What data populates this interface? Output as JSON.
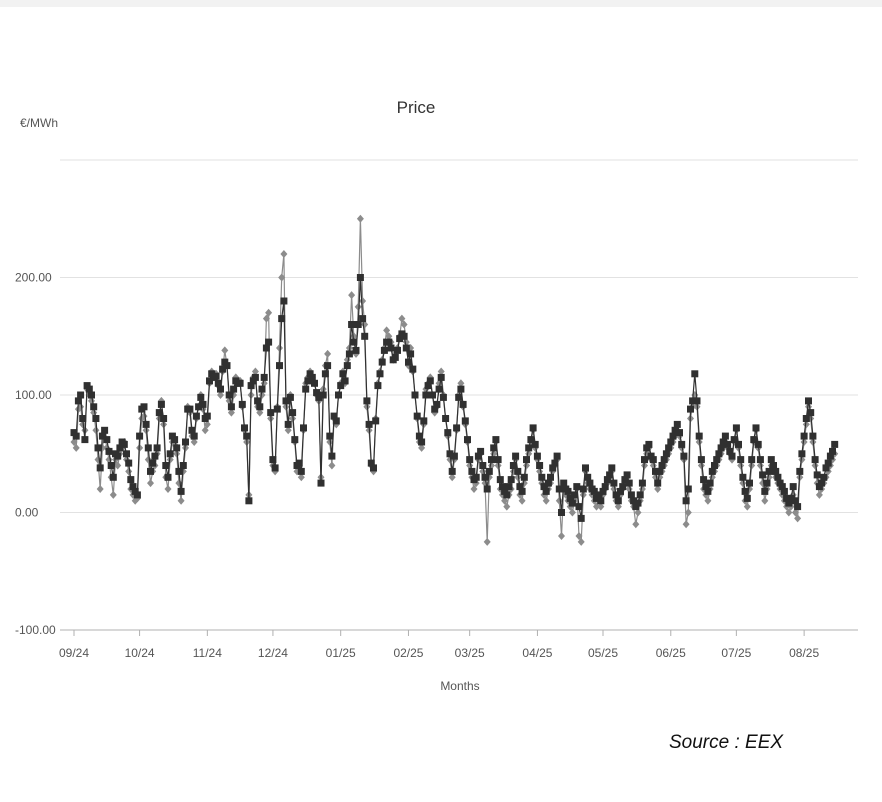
{
  "chart_data": {
    "type": "line",
    "title": "Price",
    "ylabel": "€/MWh",
    "xlabel": "Months",
    "ylim": [
      -100,
      300
    ],
    "yticks": [
      "-100.00",
      "0.00",
      "100.00",
      "200.00"
    ],
    "grid": true,
    "xtick_labels": [
      "09/24",
      "10/24",
      "11/24",
      "12/24",
      "01/25",
      "02/25",
      "03/25",
      "04/25",
      "05/25",
      "06/25",
      "07/25",
      "08/25"
    ],
    "date_start": "2024-09-01",
    "series": [
      {
        "name": "",
        "marker": "diamond",
        "color": "#8c8c8c",
        "values": [
          60,
          55,
          88,
          90,
          75,
          70,
          105,
          100,
          95,
          85,
          70,
          45,
          20,
          55,
          68,
          55,
          45,
          30,
          15,
          45,
          40,
          50,
          55,
          60,
          45,
          35,
          20,
          15,
          10,
          12,
          55,
          80,
          82,
          70,
          45,
          25,
          35,
          40,
          50,
          80,
          95,
          75,
          30,
          20,
          45,
          60,
          58,
          50,
          25,
          10,
          35,
          55,
          90,
          85,
          65,
          60,
          80,
          90,
          100,
          88,
          70,
          75,
          110,
          120,
          115,
          118,
          108,
          100,
          120,
          138,
          125,
          95,
          85,
          100,
          115,
          110,
          112,
          90,
          70,
          60,
          15,
          100,
          115,
          120,
          90,
          85,
          100,
          110,
          165,
          170,
          80,
          40,
          35,
          90,
          140,
          200,
          220,
          90,
          70,
          100,
          80,
          60,
          35,
          40,
          30,
          70,
          110,
          115,
          120,
          115,
          110,
          100,
          95,
          30,
          105,
          125,
          135,
          60,
          40,
          80,
          75,
          100,
          110,
          120,
          110,
          130,
          140,
          185,
          150,
          135,
          175,
          250,
          180,
          160,
          90,
          70,
          40,
          35,
          80,
          110,
          120,
          130,
          140,
          155,
          150,
          145,
          130,
          135,
          140,
          150,
          165,
          160,
          145,
          125,
          140,
          120,
          100,
          80,
          60,
          55,
          75,
          105,
          110,
          115,
          100,
          85,
          90,
          110,
          120,
          100,
          80,
          65,
          45,
          30,
          45,
          70,
          100,
          110,
          90,
          75,
          60,
          40,
          30,
          20,
          25,
          45,
          50,
          35,
          25,
          -25,
          30,
          40,
          50,
          60,
          40,
          20,
          15,
          10,
          5,
          15,
          20,
          35,
          45,
          30,
          15,
          10,
          25,
          40,
          50,
          60,
          70,
          55,
          45,
          35,
          25,
          15,
          10,
          20,
          25,
          35,
          40,
          45,
          10,
          -20,
          20,
          15,
          10,
          5,
          0,
          10,
          20,
          -20,
          -25,
          15,
          35,
          25,
          20,
          15,
          10,
          5,
          10,
          5,
          15,
          20,
          25,
          30,
          35,
          20,
          10,
          5,
          15,
          20,
          25,
          30,
          20,
          10,
          5,
          -10,
          0,
          10,
          20,
          40,
          50,
          55,
          45,
          40,
          30,
          20,
          30,
          35,
          40,
          45,
          50,
          55,
          60,
          65,
          70,
          65,
          55,
          45,
          -10,
          0,
          80,
          90,
          100,
          90,
          60,
          40,
          20,
          15,
          10,
          20,
          30,
          35,
          40,
          45,
          50,
          55,
          60,
          55,
          50,
          45,
          60,
          70,
          55,
          40,
          25,
          10,
          5,
          20,
          40,
          60,
          70,
          55,
          40,
          25,
          10,
          20,
          30,
          40,
          35,
          30,
          25,
          20,
          15,
          10,
          5,
          0,
          5,
          15,
          0,
          -5,
          30,
          45,
          60,
          75,
          90,
          80,
          60,
          40,
          25,
          15,
          20,
          25,
          30,
          35,
          40,
          45,
          50
        ]
      },
      {
        "name": "",
        "marker": "square",
        "color": "#303030",
        "values": [
          68,
          65,
          95,
          100,
          80,
          62,
          108,
          105,
          100,
          90,
          80,
          55,
          38,
          65,
          70,
          62,
          52,
          40,
          30,
          50,
          48,
          55,
          60,
          58,
          50,
          42,
          28,
          22,
          18,
          15,
          65,
          88,
          90,
          75,
          55,
          35,
          42,
          48,
          55,
          85,
          92,
          80,
          40,
          30,
          50,
          65,
          62,
          55,
          35,
          18,
          40,
          60,
          88,
          88,
          70,
          65,
          82,
          90,
          98,
          92,
          80,
          82,
          112,
          118,
          115,
          116,
          110,
          105,
          122,
          128,
          125,
          100,
          90,
          105,
          112,
          110,
          110,
          92,
          72,
          65,
          10,
          108,
          112,
          115,
          95,
          90,
          105,
          115,
          140,
          145,
          85,
          45,
          38,
          88,
          125,
          165,
          180,
          95,
          75,
          98,
          85,
          62,
          40,
          42,
          35,
          72,
          105,
          112,
          118,
          115,
          110,
          102,
          98,
          25,
          100,
          118,
          125,
          65,
          48,
          82,
          78,
          100,
          108,
          118,
          112,
          125,
          135,
          160,
          145,
          138,
          160,
          200,
          165,
          150,
          95,
          75,
          42,
          38,
          78,
          108,
          118,
          128,
          138,
          145,
          145,
          140,
          130,
          132,
          138,
          148,
          152,
          150,
          140,
          128,
          135,
          122,
          100,
          82,
          65,
          60,
          78,
          100,
          108,
          112,
          100,
          88,
          92,
          105,
          115,
          98,
          80,
          68,
          50,
          35,
          48,
          72,
          98,
          105,
          92,
          78,
          62,
          45,
          35,
          28,
          30,
          48,
          52,
          40,
          30,
          20,
          35,
          45,
          55,
          62,
          45,
          28,
          22,
          18,
          15,
          22,
          28,
          40,
          48,
          35,
          22,
          18,
          30,
          45,
          55,
          62,
          72,
          58,
          48,
          40,
          30,
          22,
          18,
          25,
          30,
          38,
          42,
          48,
          20,
          0,
          25,
          20,
          18,
          12,
          8,
          15,
          22,
          5,
          -5,
          20,
          38,
          30,
          25,
          20,
          18,
          12,
          15,
          10,
          18,
          22,
          28,
          32,
          38,
          25,
          15,
          10,
          18,
          22,
          28,
          32,
          25,
          15,
          10,
          5,
          8,
          15,
          25,
          45,
          55,
          58,
          48,
          45,
          35,
          25,
          35,
          40,
          45,
          50,
          55,
          60,
          65,
          70,
          75,
          68,
          58,
          48,
          10,
          20,
          88,
          95,
          118,
          95,
          65,
          45,
          28,
          22,
          18,
          25,
          35,
          40,
          45,
          50,
          55,
          60,
          65,
          58,
          52,
          48,
          62,
          72,
          58,
          45,
          30,
          18,
          12,
          25,
          45,
          62,
          72,
          58,
          45,
          32,
          18,
          25,
          35,
          45,
          40,
          35,
          30,
          25,
          22,
          18,
          12,
          8,
          12,
          22,
          10,
          5,
          35,
          50,
          65,
          80,
          95,
          85,
          65,
          45,
          32,
          22,
          25,
          30,
          38,
          42,
          48,
          52,
          58
        ]
      }
    ]
  },
  "source": {
    "label": "Source : EEX"
  }
}
